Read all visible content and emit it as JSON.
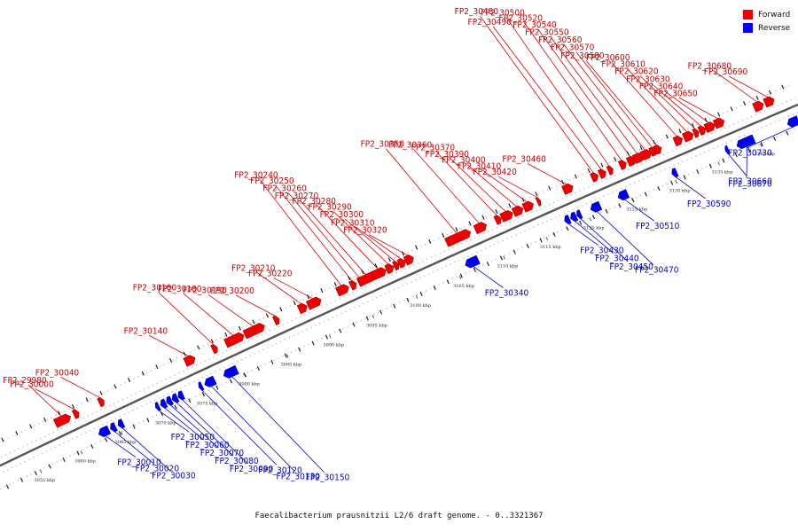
{
  "caption": "Faecalibacterium prausnitzii L2/6 draft genome. - 0..3321367",
  "legend": [
    {
      "label": "Forward",
      "color": "#ee0000"
    },
    {
      "label": "Reverse",
      "color": "#0000ee"
    }
  ],
  "colors": {
    "forward": "#ee0000",
    "reverse": "#0000ee",
    "backbone": "#555555"
  },
  "scale_ticks": [
    {
      "label": "3055 kbp",
      "t": 0.047
    },
    {
      "label": "3060 kbp",
      "t": 0.095
    },
    {
      "label": "3065 kbp",
      "t": 0.143
    },
    {
      "label": "3070 kbp",
      "t": 0.191
    },
    {
      "label": "3075 kbp",
      "t": 0.241
    },
    {
      "label": "3080 kbp",
      "t": 0.292
    },
    {
      "label": "3085 kbp",
      "t": 0.343
    },
    {
      "label": "3090 kbp",
      "t": 0.395
    },
    {
      "label": "3095 kbp",
      "t": 0.448
    },
    {
      "label": "3100 kbp",
      "t": 0.502
    },
    {
      "label": "3105 kbp",
      "t": 0.556
    },
    {
      "label": "3110 kbp",
      "t": 0.611
    },
    {
      "label": "3115 kbp",
      "t": 0.665
    },
    {
      "label": "3120 kbp",
      "t": 0.72
    },
    {
      "label": "3125 kbp",
      "t": 0.775
    },
    {
      "label": "3130 kbp",
      "t": 0.83
    },
    {
      "label": "3135 kbp",
      "t": 0.885
    },
    {
      "label": "3140 kbp",
      "t": 0.94
    }
  ],
  "genes": [
    {
      "name": "FP2_29980",
      "strand": "forward",
      "t": 0.092,
      "w": 0.018
    },
    {
      "name": "FP2_30000",
      "strand": "forward",
      "t": 0.108,
      "w": 0.006
    },
    {
      "name": "FP2_30040",
      "strand": "forward",
      "t": 0.138,
      "w": 0.006
    },
    {
      "name": "FP2_30140",
      "strand": "forward",
      "t": 0.244,
      "w": 0.012
    },
    {
      "name": "FP2_30160",
      "strand": "forward",
      "t": 0.274,
      "w": 0.006
    },
    {
      "name": "FP2_30180",
      "strand": "forward",
      "t": 0.298,
      "w": 0.022
    },
    {
      "name": "FP2_30190",
      "strand": "forward",
      "t": 0.322,
      "w": 0.024
    },
    {
      "name": "FP2_30200",
      "strand": "forward",
      "t": 0.349,
      "w": 0.006
    },
    {
      "name": "FP2_30210",
      "strand": "forward",
      "t": 0.381,
      "w": 0.01
    },
    {
      "name": "FP2_30220",
      "strand": "forward",
      "t": 0.395,
      "w": 0.016
    },
    {
      "name": "FP2_30240",
      "strand": "forward",
      "t": 0.43,
      "w": 0.014
    },
    {
      "name": "FP2_30250",
      "strand": "forward",
      "t": 0.443,
      "w": 0.007
    },
    {
      "name": "FP2_30260",
      "strand": "forward",
      "t": 0.452,
      "w": 0.006
    },
    {
      "name": "FP2_30270",
      "strand": "forward",
      "t": 0.46,
      "w": 0.02
    },
    {
      "name": "FP2_30280",
      "strand": "forward",
      "t": 0.475,
      "w": 0.016
    },
    {
      "name": "FP2_30290",
      "strand": "forward",
      "t": 0.488,
      "w": 0.009
    },
    {
      "name": "FP2_30300",
      "strand": "forward",
      "t": 0.496,
      "w": 0.006
    },
    {
      "name": "FP2_30310",
      "strand": "forward",
      "t": 0.503,
      "w": 0.008
    },
    {
      "name": "FP2_30320",
      "strand": "forward",
      "t": 0.512,
      "w": 0.01
    },
    {
      "name": "FP2_30350",
      "strand": "forward",
      "t": 0.573,
      "w": 0.03
    },
    {
      "name": "FP2_30360",
      "strand": "forward",
      "t": 0.601,
      "w": 0.014
    },
    {
      "name": "FP2_30370",
      "strand": "forward",
      "t": 0.623,
      "w": 0.007
    },
    {
      "name": "FP2_30390",
      "strand": "forward",
      "t": 0.634,
      "w": 0.014
    },
    {
      "name": "FP2_30400",
      "strand": "forward",
      "t": 0.648,
      "w": 0.012
    },
    {
      "name": "FP2_30410",
      "strand": "forward",
      "t": 0.661,
      "w": 0.012
    },
    {
      "name": "FP2_30420",
      "strand": "forward",
      "t": 0.674,
      "w": 0.004
    },
    {
      "name": "FP2_30460",
      "strand": "forward",
      "t": 0.711,
      "w": 0.012
    },
    {
      "name": "FP2_30480",
      "strand": "forward",
      "t": 0.745,
      "w": 0.008
    },
    {
      "name": "FP2_30490",
      "strand": "forward",
      "t": 0.755,
      "w": 0.008
    },
    {
      "name": "FP2_30500",
      "strand": "forward",
      "t": 0.765,
      "w": 0.006
    },
    {
      "name": "FP2_30520",
      "strand": "forward",
      "t": 0.781,
      "w": 0.008
    },
    {
      "name": "FP2_30540",
      "strand": "forward",
      "t": 0.792,
      "w": 0.01
    },
    {
      "name": "FP2_30550",
      "strand": "forward",
      "t": 0.801,
      "w": 0.012
    },
    {
      "name": "FP2_30560",
      "strand": "forward",
      "t": 0.811,
      "w": 0.012
    },
    {
      "name": "FP2_30570",
      "strand": "forward",
      "t": 0.82,
      "w": 0.008
    },
    {
      "name": "FP2_30580",
      "strand": "forward",
      "t": 0.826,
      "w": 0.008
    },
    {
      "name": "FP2_30600",
      "strand": "forward",
      "t": 0.852,
      "w": 0.01
    },
    {
      "name": "FP2_30610",
      "strand": "forward",
      "t": 0.865,
      "w": 0.012
    },
    {
      "name": "FP2_30620",
      "strand": "forward",
      "t": 0.875,
      "w": 0.006
    },
    {
      "name": "FP2_30630",
      "strand": "forward",
      "t": 0.883,
      "w": 0.008
    },
    {
      "name": "FP2_30640",
      "strand": "forward",
      "t": 0.893,
      "w": 0.012
    },
    {
      "name": "FP2_30650",
      "strand": "forward",
      "t": 0.905,
      "w": 0.012
    },
    {
      "name": "FP2_30680",
      "strand": "forward",
      "t": 0.956,
      "w": 0.012
    },
    {
      "name": "FP2_30690",
      "strand": "forward",
      "t": 0.97,
      "w": 0.012
    },
    {
      "name": "FP2_30010",
      "strand": "reverse",
      "t": 0.126,
      "w": 0.012
    },
    {
      "name": "FP2_30020",
      "strand": "reverse",
      "t": 0.137,
      "w": 0.006
    },
    {
      "name": "FP2_30030",
      "strand": "reverse",
      "t": 0.146,
      "w": 0.006
    },
    {
      "name": "FP2_30050",
      "strand": "reverse",
      "t": 0.19,
      "w": 0.004
    },
    {
      "name": "FP2_30060",
      "strand": "reverse",
      "t": 0.197,
      "w": 0.006
    },
    {
      "name": "FP2_30070",
      "strand": "reverse",
      "t": 0.204,
      "w": 0.006
    },
    {
      "name": "FP2_30080",
      "strand": "reverse",
      "t": 0.211,
      "w": 0.006
    },
    {
      "name": "FP2_30090",
      "strand": "reverse",
      "t": 0.218,
      "w": 0.006
    },
    {
      "name": "FP2_30120",
      "strand": "reverse",
      "t": 0.242,
      "w": 0.004
    },
    {
      "name": "FP2_30130",
      "strand": "reverse",
      "t": 0.253,
      "w": 0.012
    },
    {
      "name": "FP2_30150",
      "strand": "reverse",
      "t": 0.278,
      "w": 0.016
    },
    {
      "name": "FP2_30340",
      "strand": "reverse",
      "t": 0.575,
      "w": 0.016
    },
    {
      "name": "FP2_30430",
      "strand": "reverse",
      "t": 0.695,
      "w": 0.006
    },
    {
      "name": "FP2_30440",
      "strand": "reverse",
      "t": 0.703,
      "w": 0.007
    },
    {
      "name": "FP2_30450",
      "strand": "reverse",
      "t": 0.71,
      "w": 0.005
    },
    {
      "name": "FP2_30470",
      "strand": "reverse",
      "t": 0.731,
      "w": 0.012
    },
    {
      "name": "FP2_30510",
      "strand": "reverse",
      "t": 0.766,
      "w": 0.012
    },
    {
      "name": "FP2_30590",
      "strand": "reverse",
      "t": 0.832,
      "w": 0.006
    },
    {
      "name": "FP2_30660",
      "strand": "reverse",
      "t": 0.9,
      "w": 0.004
    },
    {
      "name": "FP2_30670",
      "strand": "reverse",
      "t": 0.924,
      "w": 0.022
    },
    {
      "name": "FP2_30730",
      "strand": "reverse",
      "t": 0.986,
      "w": 0.014
    }
  ]
}
